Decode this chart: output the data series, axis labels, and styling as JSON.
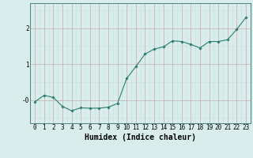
{
  "x": [
    0,
    1,
    2,
    3,
    4,
    5,
    6,
    7,
    8,
    9,
    10,
    11,
    12,
    13,
    14,
    15,
    16,
    17,
    18,
    19,
    20,
    21,
    22,
    23
  ],
  "y": [
    -0.05,
    0.13,
    0.07,
    -0.18,
    -0.3,
    -0.22,
    -0.23,
    -0.23,
    -0.2,
    -0.1,
    0.6,
    0.93,
    1.28,
    1.42,
    1.48,
    1.65,
    1.63,
    1.55,
    1.45,
    1.63,
    1.63,
    1.68,
    1.97,
    2.3
  ],
  "line_color": "#2d7d6e",
  "marker": "D",
  "marker_size": 1.8,
  "line_width": 0.8,
  "xlabel": "Humidex (Indice chaleur)",
  "xlabel_fontsize": 7,
  "xlabel_weight": "bold",
  "xtick_labels": [
    "0",
    "1",
    "2",
    "3",
    "4",
    "5",
    "6",
    "7",
    "8",
    "9",
    "10",
    "11",
    "12",
    "13",
    "14",
    "15",
    "16",
    "17",
    "18",
    "19",
    "20",
    "21",
    "22",
    "23"
  ],
  "ylim": [
    -0.65,
    2.7
  ],
  "xlim": [
    -0.5,
    23.5
  ],
  "bg_color": "#d9eeec",
  "grid_color_minor": "#c5e0dc",
  "grid_color_major": "#c4aaaa",
  "tick_fontsize": 5.5
}
